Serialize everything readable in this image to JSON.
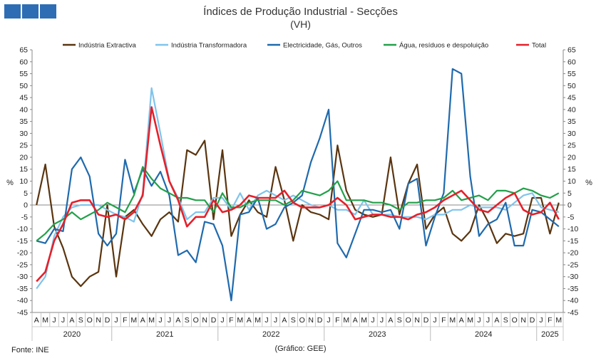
{
  "header": {
    "title": "Índices de Produção Industrial - Secções",
    "subtitle": "(VH)"
  },
  "footer": {
    "source": "Fonte: INE",
    "note": "(Gráfico: GEE)"
  },
  "colors": {
    "logo": "#2e6db4",
    "axis": "#888888"
  },
  "chart_data": {
    "type": "line",
    "ylabel_left": "%",
    "ylabel_right": "%",
    "ylim": [
      -45,
      65
    ],
    "ytick_step": 5,
    "grid": false,
    "legend_position": "top",
    "x": [
      "A",
      "M",
      "J",
      "J",
      "A",
      "S",
      "O",
      "N",
      "D",
      "J",
      "F",
      "M",
      "A",
      "M",
      "J",
      "J",
      "A",
      "S",
      "O",
      "N",
      "D",
      "J",
      "F",
      "M",
      "A",
      "M",
      "J",
      "J",
      "A",
      "S",
      "O",
      "N",
      "D",
      "J",
      "F",
      "M",
      "A",
      "M",
      "J",
      "J",
      "A",
      "S",
      "O",
      "N",
      "D",
      "J",
      "F",
      "M",
      "A",
      "M",
      "J",
      "J",
      "A",
      "S",
      "O",
      "N",
      "D",
      "J",
      "F",
      "M"
    ],
    "years": [
      {
        "label": "2020",
        "start": 0,
        "end": 8
      },
      {
        "label": "2021",
        "start": 9,
        "end": 20
      },
      {
        "label": "2022",
        "start": 21,
        "end": 32
      },
      {
        "label": "2023",
        "start": 33,
        "end": 44
      },
      {
        "label": "2024",
        "start": 45,
        "end": 56
      },
      {
        "label": "2025",
        "start": 57,
        "end": 59
      }
    ],
    "series": [
      {
        "name": "Indústria Extractiva",
        "color": "#5a3510",
        "values": [
          0,
          17,
          -9,
          -18,
          -30,
          -34,
          -30,
          -28,
          0,
          -30,
          -5,
          -2,
          -8,
          -13,
          -6,
          -3,
          -7,
          23,
          21,
          27,
          -6,
          23,
          -13,
          -4,
          2,
          -3,
          -5,
          16,
          2,
          -15,
          0,
          -3,
          -4,
          -6,
          25,
          6,
          -2,
          -4,
          -5,
          -4,
          20,
          -4,
          9,
          17,
          -10,
          -4,
          -1,
          -12,
          -15,
          -11,
          0,
          -7,
          -16,
          -12,
          -13,
          -12,
          3,
          3,
          -12,
          1
        ]
      },
      {
        "name": "Indústria Transformadora",
        "color": "#7fc4ec",
        "values": [
          -35,
          -30,
          -13,
          -5,
          -1,
          0,
          0,
          0,
          -2,
          -4,
          -5,
          -7,
          5,
          49,
          30,
          10,
          3,
          -6,
          -3,
          -3,
          3,
          3,
          -2,
          5,
          -2,
          4,
          6,
          4,
          2,
          4,
          2,
          0,
          -1,
          0,
          -2,
          -2,
          -4,
          2,
          -4,
          -4,
          -4,
          -5,
          -5,
          -5,
          -6,
          -4,
          -4,
          -2,
          -2,
          0,
          -1,
          -1,
          -1,
          -2,
          1,
          4,
          5,
          -1,
          -2,
          -3
        ]
      },
      {
        "name": "Electricidade, Gás, Outros",
        "color": "#1f6aad",
        "values": [
          -15,
          -16,
          -10,
          -11,
          15,
          20,
          12,
          -12,
          -17,
          -12,
          19,
          5,
          15,
          8,
          14,
          4,
          -21,
          -19,
          -24,
          -7,
          -8,
          -17,
          -40,
          -4,
          -3,
          3,
          -10,
          -8,
          -1,
          1,
          4,
          18,
          28,
          40,
          -16,
          -22,
          -12,
          -2,
          -2,
          -3,
          -2,
          -10,
          9,
          11,
          -17,
          -5,
          5,
          57,
          55,
          12,
          -13,
          -8,
          -6,
          1,
          -17,
          -17,
          -2,
          -3,
          -6,
          -9
        ]
      },
      {
        "name": "Água, resíduos e despoluição",
        "color": "#22a04a",
        "values": [
          -15,
          -12,
          -8,
          -6,
          -3,
          -6,
          -4,
          -2,
          1,
          -1,
          -3,
          4,
          16,
          11,
          7,
          5,
          3,
          3,
          2,
          2,
          -3,
          5,
          -1,
          -1,
          1,
          2,
          2,
          2,
          0,
          2,
          6,
          5,
          4,
          6,
          10,
          2,
          2,
          2,
          1,
          1,
          0,
          -2,
          1,
          1,
          2,
          2,
          3,
          6,
          2,
          3,
          4,
          2,
          6,
          6,
          5,
          7,
          6,
          4,
          3,
          5
        ]
      },
      {
        "name": "Total",
        "color": "#e5202a",
        "values": [
          -32,
          -28,
          -15,
          -8,
          1,
          2,
          2,
          -4,
          -5,
          -4,
          -6,
          -3,
          4,
          41,
          25,
          10,
          2,
          -9,
          -5,
          -5,
          2,
          -3,
          -2,
          0,
          4,
          3,
          3,
          3,
          6,
          1,
          -1,
          -1,
          -1,
          0,
          3,
          0,
          -6,
          -5,
          -4,
          -4,
          -5,
          -5,
          -6,
          -4,
          -3,
          -1,
          2,
          4,
          6,
          2,
          -2,
          -3,
          0,
          3,
          5,
          -2,
          -4,
          -3,
          1,
          -6
        ]
      }
    ]
  }
}
